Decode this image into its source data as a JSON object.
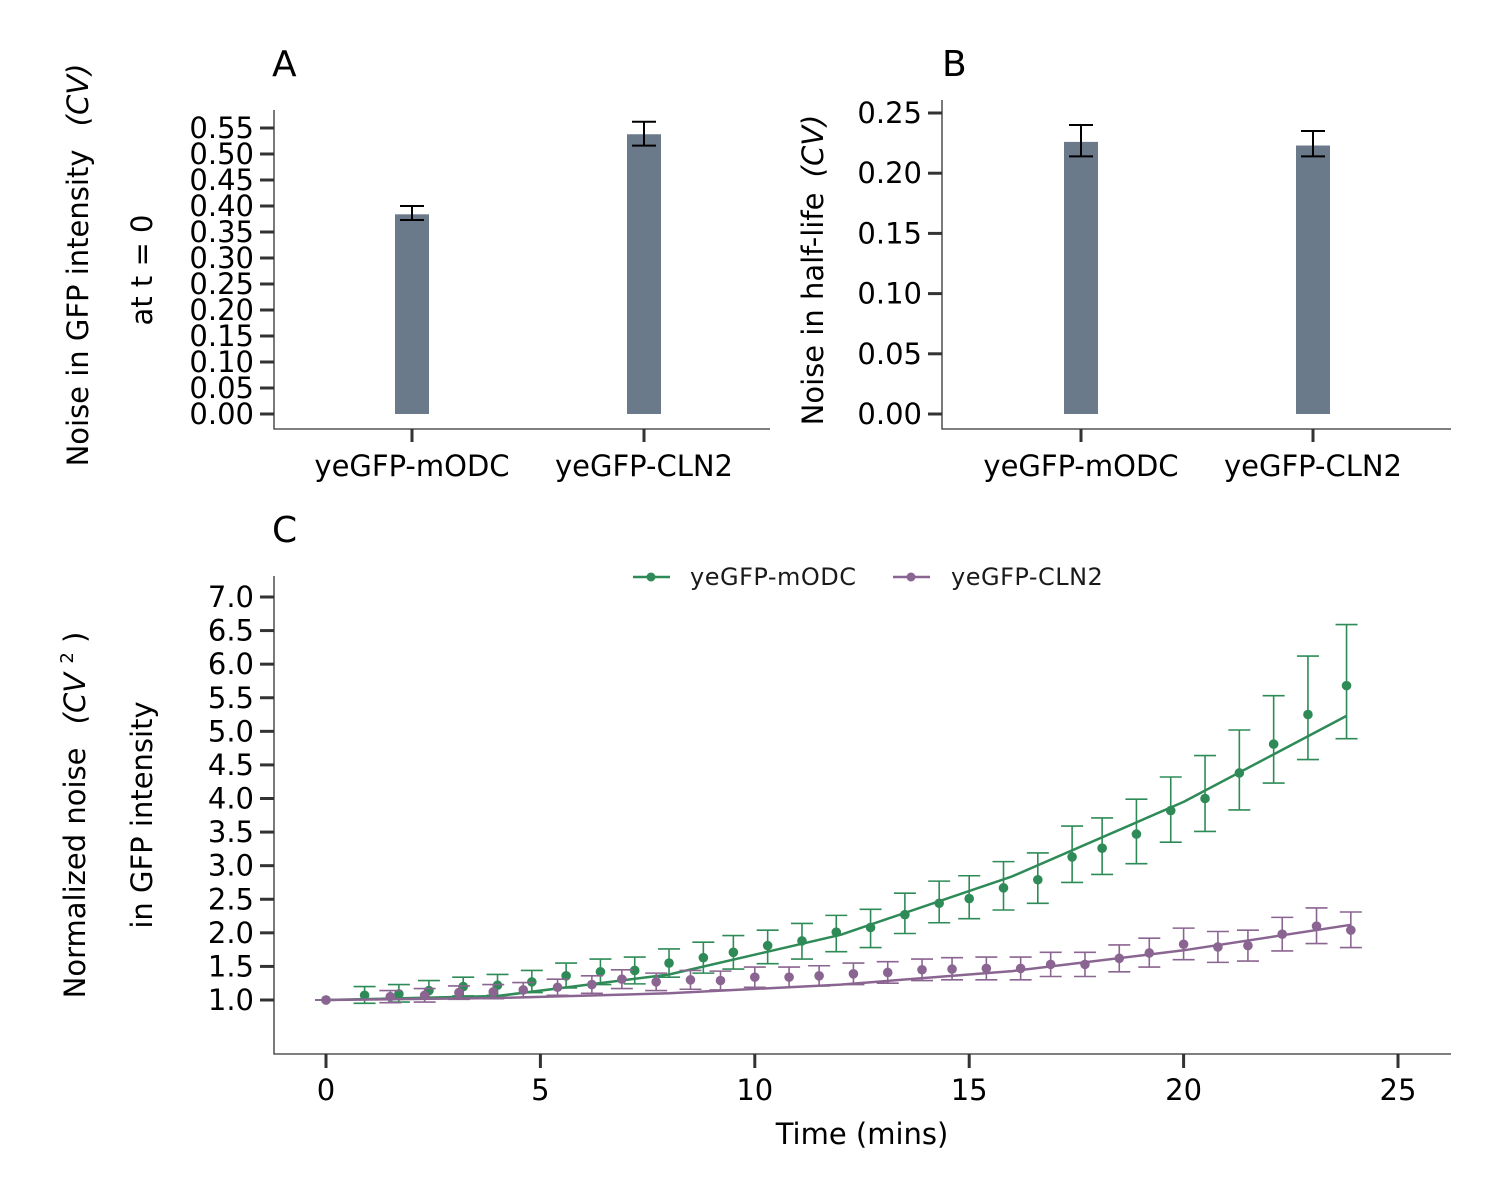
{
  "colors": {
    "bar": "#6b7a8b",
    "errorbar": "#000000",
    "mODC": "#2e8b57",
    "CLN2": "#8b6591"
  },
  "chart_data": [
    {
      "panel": "A",
      "type": "bar",
      "ylabel_line1": "Noise in GFP intensity",
      "ylabel_cv": "(CV)",
      "ylabel_line2": "at t = 0",
      "categories": [
        "yeGFP-mODC",
        "yeGFP-CLN2"
      ],
      "values": [
        0.384,
        0.538
      ],
      "err_low": [
        0.373,
        0.516
      ],
      "err_high": [
        0.4,
        0.562
      ],
      "ylim": [
        0,
        0.55
      ],
      "yticks": [
        0.0,
        0.05,
        0.1,
        0.15,
        0.2,
        0.25,
        0.3,
        0.35,
        0.4,
        0.45,
        0.5,
        0.55
      ],
      "ytick_labels": [
        "0.00",
        "0.05",
        "0.10",
        "0.15",
        "0.20",
        "0.25",
        "0.30",
        "0.35",
        "0.40",
        "0.45",
        "0.50",
        "0.55"
      ]
    },
    {
      "panel": "B",
      "type": "bar",
      "ylabel_line1": "Noise in half-life",
      "ylabel_cv": "(CV)",
      "categories": [
        "yeGFP-mODC",
        "yeGFP-CLN2"
      ],
      "values": [
        0.226,
        0.223
      ],
      "err_low": [
        0.214,
        0.214
      ],
      "err_high": [
        0.24,
        0.235
      ],
      "ylim": [
        0,
        0.25
      ],
      "yticks": [
        0.0,
        0.05,
        0.1,
        0.15,
        0.2,
        0.25
      ],
      "ytick_labels": [
        "0.00",
        "0.05",
        "0.10",
        "0.15",
        "0.20",
        "0.25"
      ]
    },
    {
      "panel": "C",
      "type": "line",
      "xlabel": "Time (mins)",
      "ylabel_line1": "Normalized noise",
      "ylabel_cv": "(CV",
      "ylabel_sup": "2",
      "ylabel_close": ")",
      "ylabel_line2": "in GFP intensity",
      "xlim": [
        0,
        25
      ],
      "ylim": [
        1,
        7
      ],
      "xticks": [
        0,
        5,
        10,
        15,
        20,
        25
      ],
      "xtick_labels": [
        "0",
        "5",
        "10",
        "15",
        "20",
        "25"
      ],
      "yticks": [
        1.0,
        1.5,
        2.0,
        2.5,
        3.0,
        3.5,
        4.0,
        4.5,
        5.0,
        5.5,
        6.0,
        6.5,
        7.0
      ],
      "ytick_labels": [
        "1.0",
        "1.5",
        "2.0",
        "2.5",
        "3.0",
        "3.5",
        "4.0",
        "4.5",
        "5.0",
        "5.5",
        "6.0",
        "6.5",
        "7.0"
      ],
      "legend_position": "top-center",
      "series": [
        {
          "name": "yeGFP-mODC",
          "color": "#2e8b57",
          "x": [
            0,
            0.9,
            1.7,
            2.4,
            3.2,
            4.0,
            4.8,
            5.6,
            6.4,
            7.2,
            8.0,
            8.8,
            9.5,
            10.3,
            11.1,
            11.9,
            12.7,
            13.5,
            14.3,
            15.0,
            15.8,
            16.6,
            17.4,
            18.1,
            18.9,
            19.7,
            20.5,
            21.3,
            22.1,
            22.9,
            23.8
          ],
          "y": [
            1.0,
            1.07,
            1.09,
            1.14,
            1.2,
            1.22,
            1.27,
            1.36,
            1.42,
            1.44,
            1.55,
            1.63,
            1.71,
            1.81,
            1.88,
            2.01,
            2.08,
            2.27,
            2.44,
            2.51,
            2.67,
            2.79,
            3.13,
            3.26,
            3.47,
            3.82,
            4.0,
            4.38,
            4.81,
            5.25,
            5.68
          ],
          "err_low": [
            1.0,
            0.95,
            0.97,
            1.02,
            1.06,
            1.07,
            1.11,
            1.18,
            1.23,
            1.24,
            1.34,
            1.4,
            1.46,
            1.54,
            1.61,
            1.72,
            1.78,
            1.99,
            2.15,
            2.21,
            2.34,
            2.44,
            2.75,
            2.87,
            3.03,
            3.35,
            3.51,
            3.83,
            4.23,
            4.58,
            4.89
          ],
          "err_high": [
            1.0,
            1.2,
            1.23,
            1.29,
            1.34,
            1.38,
            1.44,
            1.55,
            1.61,
            1.64,
            1.76,
            1.86,
            1.96,
            2.04,
            2.14,
            2.26,
            2.35,
            2.59,
            2.77,
            2.85,
            3.06,
            3.19,
            3.59,
            3.71,
            3.99,
            4.32,
            4.64,
            5.02,
            5.53,
            6.12,
            6.59
          ],
          "fit_x": [
            0,
            4,
            8,
            12,
            16,
            20,
            23.8
          ],
          "fit_y": [
            1.0,
            1.06,
            1.38,
            1.97,
            2.84,
            3.95,
            5.23
          ]
        },
        {
          "name": "yeGFP-CLN2",
          "color": "#8b6591",
          "x": [
            0,
            1.5,
            2.3,
            3.1,
            3.9,
            4.6,
            5.4,
            6.2,
            6.9,
            7.7,
            8.5,
            9.2,
            10.0,
            10.8,
            11.5,
            12.3,
            13.1,
            13.9,
            14.6,
            15.4,
            16.2,
            16.9,
            17.7,
            18.5,
            19.2,
            20.0,
            20.8,
            21.5,
            22.3,
            23.1,
            23.9
          ],
          "y": [
            1.0,
            1.05,
            1.07,
            1.11,
            1.12,
            1.15,
            1.19,
            1.23,
            1.31,
            1.27,
            1.3,
            1.29,
            1.34,
            1.34,
            1.36,
            1.39,
            1.41,
            1.45,
            1.46,
            1.47,
            1.47,
            1.53,
            1.53,
            1.62,
            1.7,
            1.83,
            1.79,
            1.81,
            1.98,
            2.1,
            2.04
          ],
          "err_low": [
            1.0,
            0.96,
            0.97,
            1.01,
            1.02,
            1.04,
            1.07,
            1.1,
            1.17,
            1.14,
            1.16,
            1.15,
            1.19,
            1.19,
            1.21,
            1.23,
            1.25,
            1.29,
            1.3,
            1.3,
            1.3,
            1.35,
            1.35,
            1.42,
            1.49,
            1.6,
            1.56,
            1.58,
            1.73,
            1.84,
            1.78
          ],
          "err_high": [
            1.0,
            1.14,
            1.17,
            1.21,
            1.23,
            1.26,
            1.31,
            1.36,
            1.45,
            1.4,
            1.44,
            1.43,
            1.49,
            1.49,
            1.51,
            1.55,
            1.57,
            1.61,
            1.63,
            1.64,
            1.64,
            1.71,
            1.71,
            1.82,
            1.92,
            2.07,
            2.02,
            2.04,
            2.23,
            2.37,
            2.31
          ],
          "fit_x": [
            0,
            4,
            8,
            12,
            16,
            20,
            23.9
          ],
          "fit_y": [
            1.0,
            1.03,
            1.1,
            1.23,
            1.43,
            1.74,
            2.12
          ]
        }
      ]
    }
  ]
}
